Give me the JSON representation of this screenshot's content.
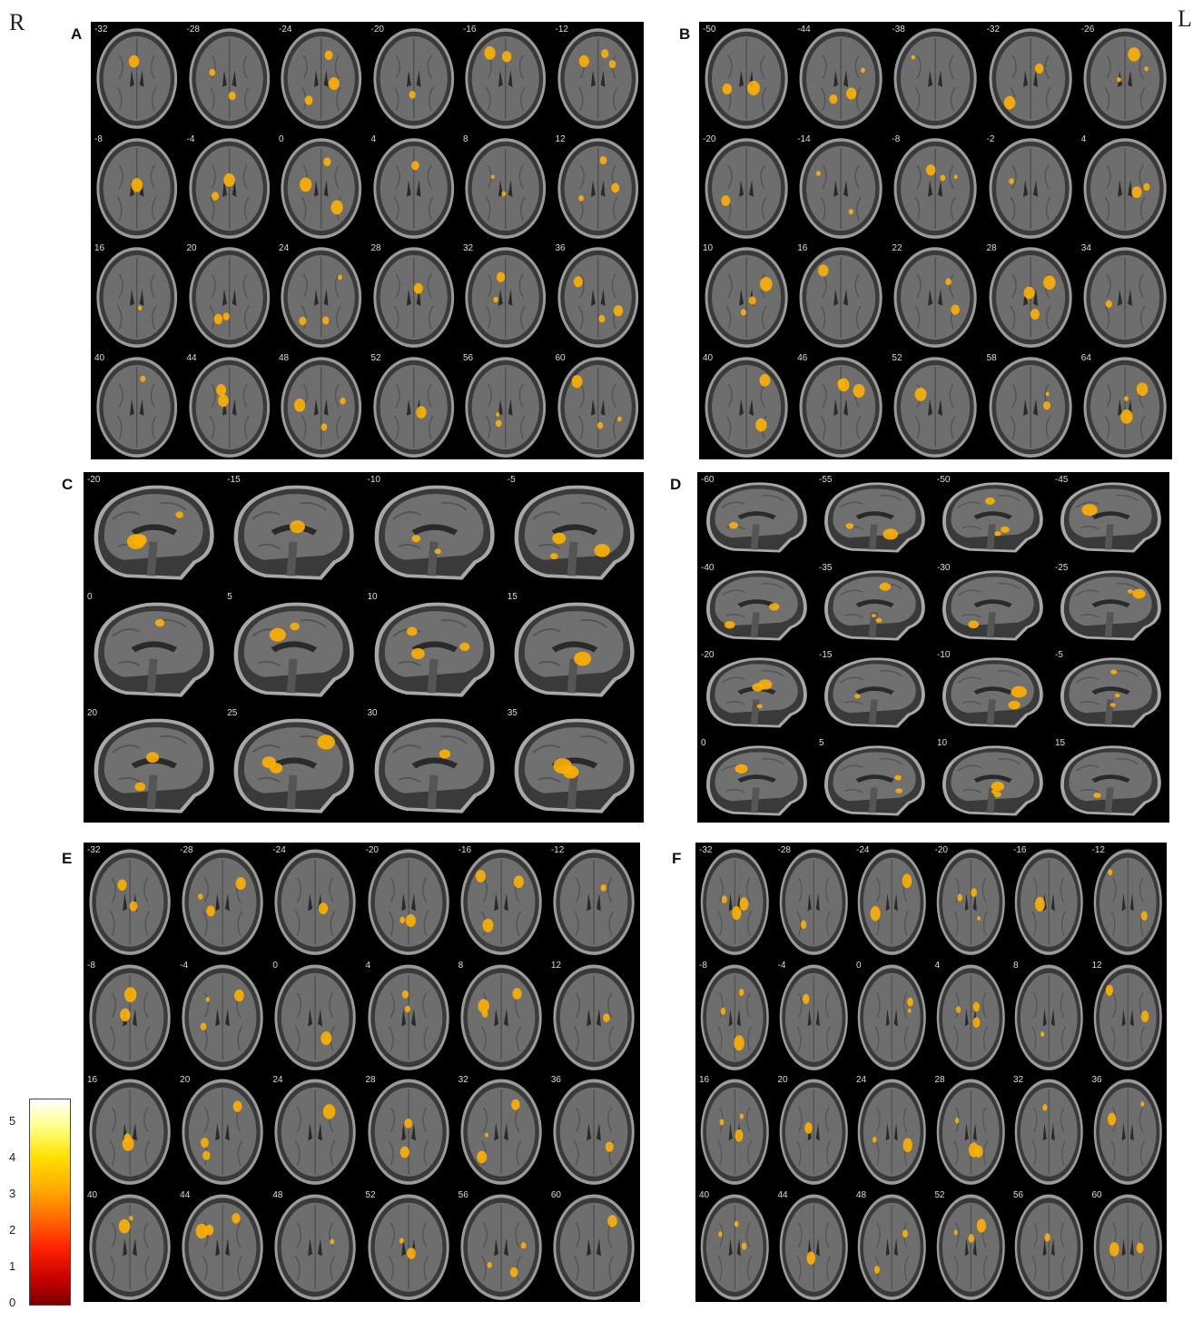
{
  "orientation": {
    "right": "R",
    "left": "L"
  },
  "panels": {
    "A": {
      "label": "A",
      "view": "axial",
      "rows": 4,
      "cols": 6,
      "slices": [
        "-32",
        "-28",
        "-24",
        "-20",
        "-16",
        "-12",
        "-8",
        "-4",
        "0",
        "4",
        "8",
        "12",
        "16",
        "20",
        "24",
        "28",
        "32",
        "36",
        "40",
        "44",
        "48",
        "52",
        "56",
        "60"
      ]
    },
    "B": {
      "label": "B",
      "view": "axial",
      "rows": 4,
      "cols": 5,
      "slices": [
        "-50",
        "-44",
        "-38",
        "-32",
        "-26",
        "-20",
        "-14",
        "-8",
        "-2",
        "4",
        "10",
        "16",
        "22",
        "28",
        "34",
        "40",
        "46",
        "52",
        "58",
        "64"
      ]
    },
    "C": {
      "label": "C",
      "view": "sagittal",
      "rows": 3,
      "cols": 4,
      "slices": [
        "-20",
        "-15",
        "-10",
        "-5",
        "0",
        "5",
        "10",
        "15",
        "20",
        "25",
        "30",
        "35"
      ]
    },
    "D": {
      "label": "D",
      "view": "sagittal",
      "rows": 4,
      "cols": 4,
      "slices": [
        "-60",
        "-55",
        "-50",
        "-45",
        "-40",
        "-35",
        "-30",
        "-25",
        "-20",
        "-15",
        "-10",
        "-5",
        "0",
        "5",
        "10",
        "15"
      ]
    },
    "E": {
      "label": "E",
      "view": "axial",
      "rows": 4,
      "cols": 6,
      "slices": [
        "-32",
        "-28",
        "-24",
        "-20",
        "-16",
        "-12",
        "-8",
        "-4",
        "0",
        "4",
        "8",
        "12",
        "16",
        "20",
        "24",
        "28",
        "32",
        "36",
        "40",
        "44",
        "48",
        "52",
        "56",
        "60"
      ]
    },
    "F": {
      "label": "F",
      "view": "axial",
      "rows": 4,
      "cols": 6,
      "slices": [
        "-32",
        "-28",
        "-24",
        "-20",
        "-16",
        "-12",
        "-8",
        "-4",
        "0",
        "4",
        "8",
        "12",
        "16",
        "20",
        "24",
        "28",
        "32",
        "36",
        "40",
        "44",
        "48",
        "52",
        "56",
        "60"
      ]
    }
  },
  "colorbar": {
    "ticks": [
      "5",
      "4",
      "3",
      "2",
      "1",
      "0"
    ],
    "min": 0,
    "max": 5.5,
    "colors": [
      "#7a0000",
      "#ff2400",
      "#ffaa00",
      "#ffff80",
      "#ffffff"
    ]
  },
  "activation_color": "#ffb000"
}
